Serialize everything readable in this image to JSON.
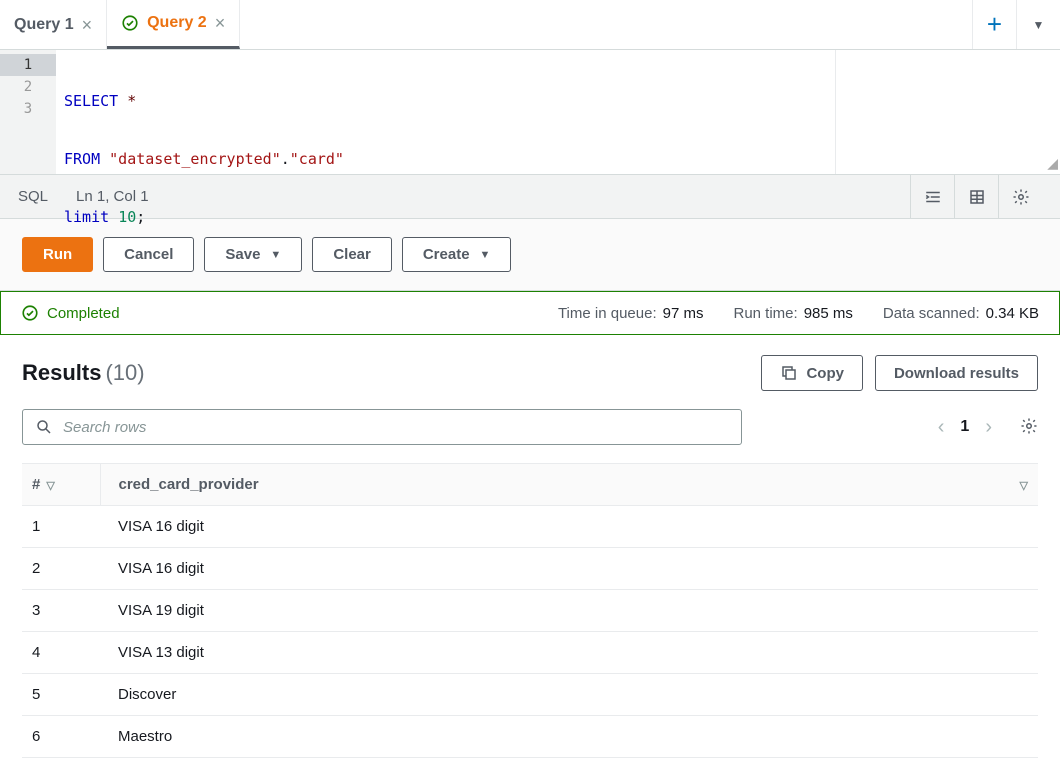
{
  "tabs": [
    {
      "label": "Query 1",
      "active": false,
      "hasCheck": false
    },
    {
      "label": "Query 2",
      "active": true,
      "hasCheck": true
    }
  ],
  "editor": {
    "lines": [
      "1",
      "2",
      "3"
    ],
    "tokens": {
      "l1_select": "SELECT",
      "l1_star": "*",
      "l2_from": "FROM",
      "l2_str1": "\"dataset_encrypted\"",
      "l2_dot": ".",
      "l2_str2": "\"card\"",
      "l3_limit": "limit",
      "l3_num": "10",
      "l3_semi": ";"
    }
  },
  "statusbar": {
    "lang": "SQL",
    "pos": "Ln 1, Col 1"
  },
  "toolbar": {
    "run": "Run",
    "cancel": "Cancel",
    "save": "Save",
    "clear": "Clear",
    "create": "Create"
  },
  "banner": {
    "status": "Completed",
    "queue_label": "Time in queue:",
    "queue_value": "97 ms",
    "runtime_label": "Run time:",
    "runtime_value": "985 ms",
    "scanned_label": "Data scanned:",
    "scanned_value": "0.34 KB"
  },
  "results": {
    "title": "Results",
    "count": "(10)",
    "copy": "Copy",
    "download": "Download results",
    "search_placeholder": "Search rows",
    "page": "1",
    "columns": {
      "idx": "#",
      "provider": "cred_card_provider"
    },
    "rows": [
      {
        "idx": "1",
        "provider": "VISA 16 digit"
      },
      {
        "idx": "2",
        "provider": "VISA 16 digit"
      },
      {
        "idx": "3",
        "provider": "VISA 19 digit"
      },
      {
        "idx": "4",
        "provider": "VISA 13 digit"
      },
      {
        "idx": "5",
        "provider": "Discover"
      },
      {
        "idx": "6",
        "provider": "Maestro"
      }
    ]
  }
}
